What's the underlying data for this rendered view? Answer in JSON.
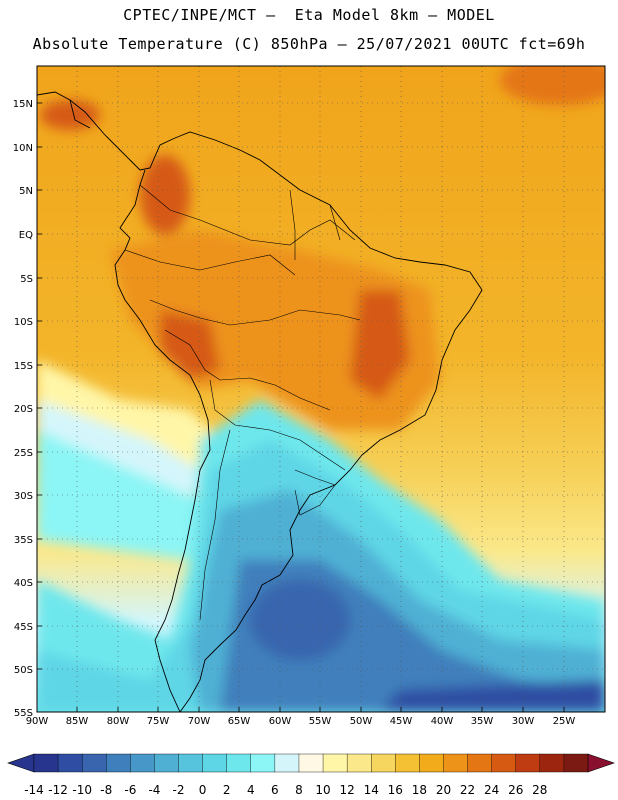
{
  "header": {
    "line1": "CPTEC/INPE/MCT —  Eta Model 8km — MODEL",
    "line2": "Absolute Temperature (C) 850hPa — 25/07/2021 00UTC fct=69h"
  },
  "map": {
    "lat_labels": [
      "15N",
      "10N",
      "5N",
      "EQ",
      "5S",
      "10S",
      "15S",
      "20S",
      "25S",
      "30S",
      "35S",
      "40S",
      "45S",
      "50S",
      "55S"
    ],
    "lon_labels": [
      "90W",
      "85W",
      "80W",
      "75W",
      "70W",
      "65W",
      "60W",
      "55W",
      "50W",
      "45W",
      "40W",
      "35W",
      "30W",
      "25W"
    ]
  },
  "colorbar": {
    "labels": [
      "-14",
      "-12",
      "-10",
      "-8",
      "-6",
      "-4",
      "-2",
      "0",
      "2",
      "4",
      "6",
      "8",
      "10",
      "12",
      "14",
      "16",
      "18",
      "20",
      "22",
      "24",
      "26",
      "28"
    ],
    "colors": [
      "#27358f",
      "#2f4ea3",
      "#3865ae",
      "#3f7fbc",
      "#4798c9",
      "#4fb0d4",
      "#57c4de",
      "#5fd6e6",
      "#6ee7ec",
      "#8cf5f5",
      "#d4f6fb",
      "#fff8e4",
      "#fff6a8",
      "#fbe88a",
      "#f7d660",
      "#f4c135",
      "#f2ab1b",
      "#ed931a",
      "#e47614",
      "#d65a12",
      "#bf3c12",
      "#9c2510",
      "#7a1a13"
    ],
    "arrow_left_color": "#27358f",
    "arrow_right_color": "#8a1030"
  }
}
